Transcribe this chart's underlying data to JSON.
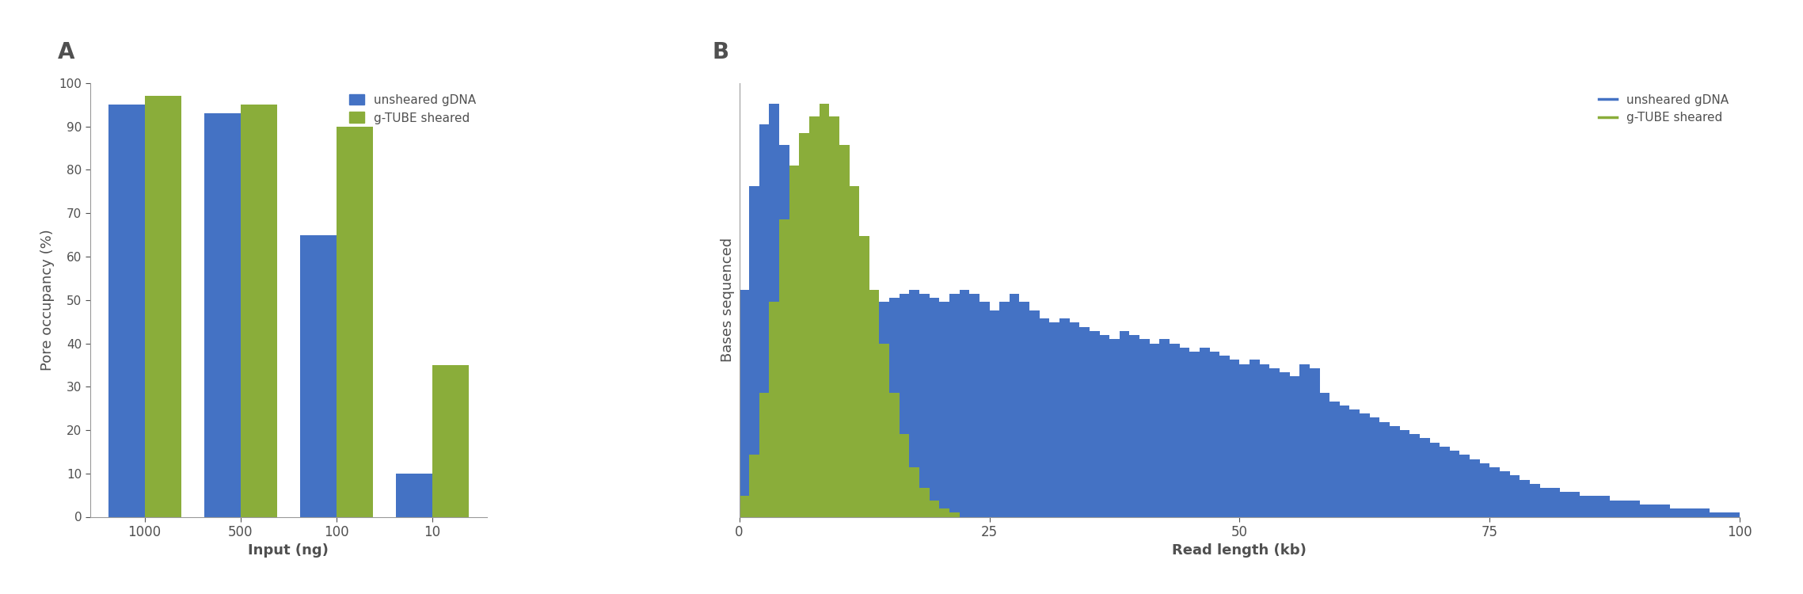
{
  "bar_categories": [
    "1000",
    "500",
    "100",
    "10"
  ],
  "bar_blue": [
    95,
    93,
    65,
    10
  ],
  "bar_green": [
    97,
    95,
    90,
    35
  ],
  "bar_blue_color": "#4472C4",
  "bar_green_color": "#8AAD3A",
  "bar_ylabel": "Pore occupancy (%)",
  "bar_xlabel": "Input (ng)",
  "bar_ylim": [
    0,
    100
  ],
  "bar_yticks": [
    0,
    10,
    20,
    30,
    40,
    50,
    60,
    70,
    80,
    90,
    100
  ],
  "panel_a_label": "A",
  "panel_b_label": "B",
  "hist_xlabel": "Read length (kb)",
  "hist_ylabel": "Bases sequenced",
  "hist_xticks": [
    0,
    25,
    50,
    75,
    100
  ],
  "legend_bar_blue": "unsheared gDNA",
  "legend_bar_green": "g-TUBE sheared",
  "legend_hist_blue": "unsheared gDNA",
  "legend_hist_green": "g-TUBE sheared",
  "hist_blue_color": "#4472C4",
  "hist_green_color": "#8AAD3A",
  "axis_color": "#505050",
  "label_color": "#505050",
  "blue_counts": [
    55,
    80,
    95,
    100,
    90,
    82,
    75,
    68,
    60,
    55,
    50,
    48,
    47,
    50,
    52,
    53,
    54,
    55,
    54,
    53,
    52,
    54,
    55,
    54,
    52,
    50,
    52,
    54,
    52,
    50,
    48,
    47,
    48,
    47,
    46,
    45,
    44,
    43,
    45,
    44,
    43,
    42,
    43,
    42,
    41,
    40,
    41,
    40,
    39,
    38,
    37,
    38,
    37,
    36,
    35,
    34,
    37,
    36,
    30,
    28,
    27,
    26,
    25,
    24,
    23,
    22,
    21,
    20,
    19,
    18,
    17,
    16,
    15,
    14,
    13,
    12,
    11,
    10,
    9,
    8,
    7,
    7,
    6,
    6,
    5,
    5,
    5,
    4,
    4,
    4,
    3,
    3,
    3,
    2,
    2,
    2,
    2,
    1,
    1,
    1
  ],
  "green_counts": [
    5,
    15,
    30,
    52,
    72,
    85,
    93,
    97,
    100,
    97,
    90,
    80,
    68,
    55,
    42,
    30,
    20,
    12,
    7,
    4,
    2,
    1,
    0,
    0,
    0,
    0,
    0,
    0,
    0,
    0,
    0,
    0,
    0,
    0,
    0,
    0,
    0,
    0,
    0,
    0,
    0,
    0,
    0,
    0,
    0,
    0,
    0,
    0,
    0,
    0,
    0,
    0,
    0,
    0,
    0,
    0,
    0,
    0,
    0,
    0,
    0,
    0,
    0,
    0,
    0,
    0,
    0,
    0,
    0,
    0,
    0,
    0,
    0,
    0,
    0,
    0,
    0,
    0,
    0,
    0,
    0,
    0,
    0,
    0,
    0,
    0,
    0,
    0,
    0,
    0,
    0,
    0,
    0,
    0,
    0,
    0,
    0,
    0,
    0,
    0
  ]
}
